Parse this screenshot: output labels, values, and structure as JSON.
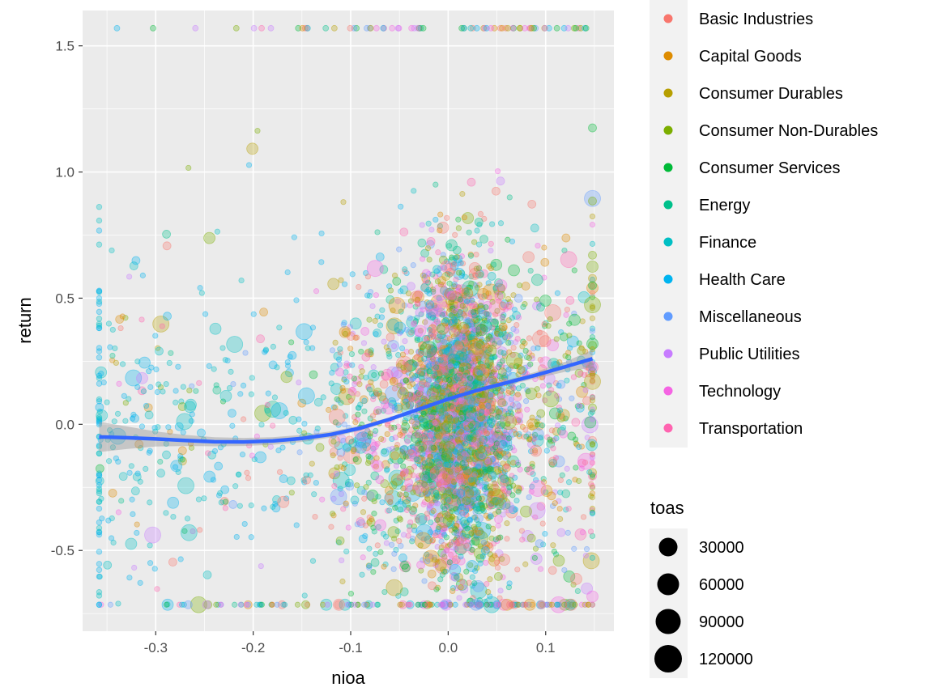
{
  "chart_data": {
    "type": "scatter",
    "xlabel": "nioa",
    "ylabel": "return",
    "xlim": [
      -0.375,
      0.17
    ],
    "ylim": [
      -0.82,
      1.64
    ],
    "x_ticks": [
      -0.3,
      -0.2,
      -0.1,
      0.0,
      0.1
    ],
    "x_tick_labels": [
      "-0.3",
      "-0.2",
      "-0.1",
      "0.0",
      "0.1"
    ],
    "y_ticks": [
      -0.5,
      0.0,
      0.5,
      1.0,
      1.5
    ],
    "y_tick_labels": [
      "-0.5",
      "0.0",
      "0.5",
      "1.0",
      "1.5"
    ],
    "grid": true,
    "point_alpha": 0.3,
    "color_legend": {
      "position": "right",
      "entries": [
        {
          "name": "Basic Industries",
          "color": "#F8766D"
        },
        {
          "name": "Capital Goods",
          "color": "#DE8C00"
        },
        {
          "name": "Consumer Durables",
          "color": "#B79F00"
        },
        {
          "name": "Consumer Non-Durables",
          "color": "#7CAE00"
        },
        {
          "name": "Consumer Services",
          "color": "#00BA38"
        },
        {
          "name": "Energy",
          "color": "#00C08B"
        },
        {
          "name": "Finance",
          "color": "#00BFC4"
        },
        {
          "name": "Health Care",
          "color": "#00B4F0"
        },
        {
          "name": "Miscellaneous",
          "color": "#619CFF"
        },
        {
          "name": "Public Utilities",
          "color": "#C77CFF"
        },
        {
          "name": "Technology",
          "color": "#F564E3"
        },
        {
          "name": "Transportation",
          "color": "#FF64B0"
        }
      ]
    },
    "size_legend": {
      "title": "toas",
      "position": "right",
      "values": [
        30000,
        60000,
        90000,
        120000
      ],
      "labels": [
        "30000",
        "60000",
        "90000",
        "120000"
      ]
    },
    "smooth_line": {
      "color": "#3366FF",
      "x": [
        -0.358,
        -0.33,
        -0.3,
        -0.27,
        -0.24,
        -0.21,
        -0.18,
        -0.15,
        -0.12,
        -0.09,
        -0.06,
        -0.03,
        0.0,
        0.03,
        0.06,
        0.09,
        0.12,
        0.148
      ],
      "y": [
        -0.05,
        -0.053,
        -0.058,
        -0.064,
        -0.069,
        -0.07,
        -0.066,
        -0.056,
        -0.04,
        -0.015,
        0.02,
        0.06,
        0.1,
        0.135,
        0.165,
        0.195,
        0.228,
        0.26
      ],
      "ci_half_width": [
        0.06,
        0.045,
        0.03,
        0.022,
        0.018,
        0.016,
        0.015,
        0.014,
        0.012,
        0.01,
        0.008,
        0.007,
        0.007,
        0.008,
        0.01,
        0.013,
        0.02,
        0.035
      ]
    }
  }
}
